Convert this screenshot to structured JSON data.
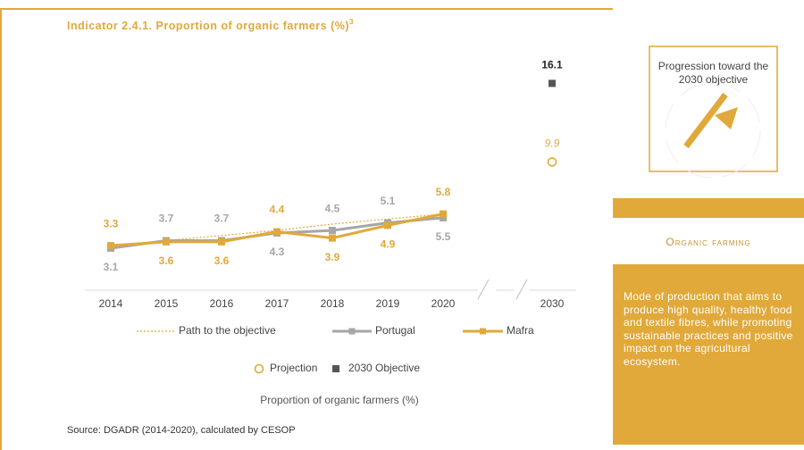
{
  "chart_data": {
    "type": "line",
    "title": "Indicator 2.4.1. Proportion of organic farmers (%)",
    "title_footnote": "3",
    "categories": [
      "2014",
      "2015",
      "2016",
      "2017",
      "2018",
      "2019",
      "2020",
      "2030"
    ],
    "ylim": [
      0,
      17
    ],
    "series": [
      {
        "name": "Path to the objective",
        "color": "#e0a93a",
        "dash": true,
        "values": [
          3.3,
          3.7,
          4.1,
          4.5,
          5.0,
          5.4,
          5.8,
          null
        ]
      },
      {
        "name": "Portugal",
        "color": "#a6a6a6",
        "values": [
          3.1,
          3.7,
          3.7,
          4.3,
          4.5,
          5.1,
          5.5,
          null
        ]
      },
      {
        "name": "Mafra",
        "color": "#e0a93a",
        "values": [
          3.3,
          3.6,
          3.6,
          4.4,
          3.9,
          4.9,
          5.8,
          null
        ]
      },
      {
        "name": "Projection",
        "color": "#e0a93a",
        "marker": "circle",
        "values": [
          null,
          null,
          null,
          null,
          null,
          null,
          null,
          9.9
        ]
      },
      {
        "name": "2030 Objective",
        "color": "#555555",
        "marker": "square",
        "values": [
          null,
          null,
          null,
          null,
          null,
          null,
          null,
          16.1
        ]
      }
    ],
    "caption": "Proportion of organic farmers (%)",
    "source": "Source: DGADR (2014-2020), calculated by CESOP"
  },
  "side_panel": {
    "progression_title": "Progression toward the 2030 objective",
    "heading": "Organic farming",
    "description": "Mode of production that aims to produce high quality, healthy food and textile fibres, while promoting sustainable practices and positive impact on the agricultural ecosystem."
  }
}
